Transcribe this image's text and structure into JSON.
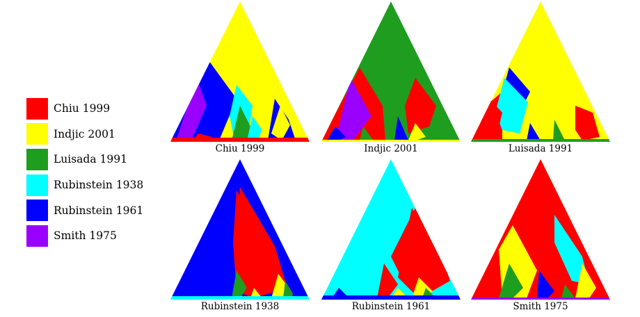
{
  "legend": {
    "items": [
      {
        "label": "Chiu 1999",
        "color": "#ff0000"
      },
      {
        "label": "Indjic 2001",
        "color": "#ffff00"
      },
      {
        "label": "Luisada 1991",
        "color": "#1f9d1f"
      },
      {
        "label": "Rubinstein 1938",
        "color": "#00ffff"
      },
      {
        "label": "Rubinstein 1961",
        "color": "#0000ff"
      },
      {
        "label": "Smith 1975",
        "color": "#9a00ff"
      }
    ]
  },
  "panels": [
    {
      "title": "Chiu 1999",
      "dominant": "Indjic 2001"
    },
    {
      "title": "Indjic 2001",
      "dominant": "Luisada 1991"
    },
    {
      "title": "Luisada 1991",
      "dominant": "Indjic 2001"
    },
    {
      "title": "Rubinstein 1938",
      "dominant": "Rubinstein 1961"
    },
    {
      "title": "Rubinstein 1961",
      "dominant": "Rubinstein 1938"
    },
    {
      "title": "Smith 1975",
      "dominant": "Chiu 1999"
    }
  ]
}
